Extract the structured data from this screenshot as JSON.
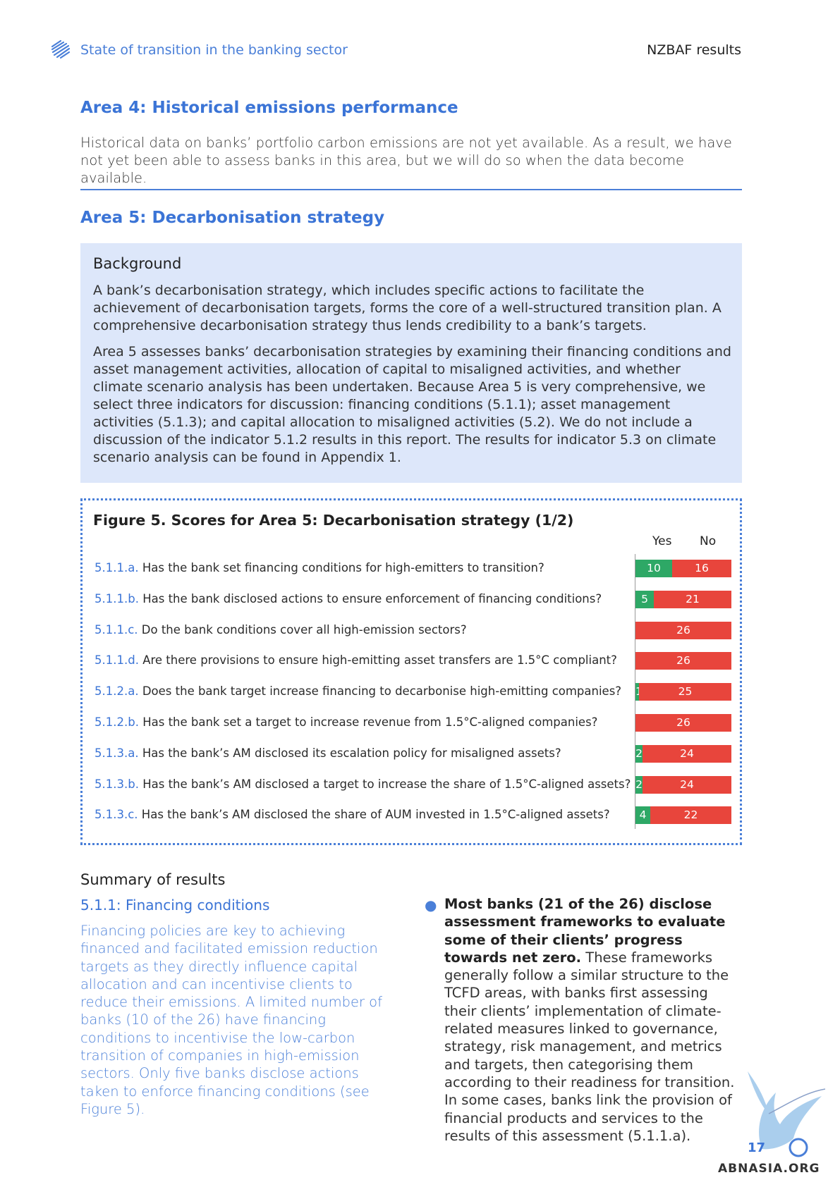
{
  "header": {
    "title": "State of transition in the banking sector",
    "right": "NZBAF results"
  },
  "area4": {
    "title": "Area 4: Historical emissions performance",
    "text": "Historical data on banks’ portfolio carbon emissions are not yet available. As a result, we have not yet been able to assess banks in this area, but we will do so when the data become available."
  },
  "area5": {
    "title": "Area 5: Decarbonisation strategy",
    "background_title": "Background",
    "p1": "A bank’s decarbonisation strategy, which includes specific actions to facilitate the achievement of decarbonisation targets, forms the core of a well-structured transition plan. A comprehensive decarbonisation strategy thus lends credibility to a bank’s targets.",
    "p2": "Area 5 assesses banks’ decarbonisation strategies by examining their financing conditions and asset management activities, allocation of capital to misaligned activities, and whether climate scenario analysis has been undertaken. Because Area 5 is very comprehensive, we select three indicators for discussion: financing conditions (5.1.1); asset management activities (5.1.3); and capital allocation to misaligned activities (5.2). We do not include a discussion of the indicator 5.1.2 results in this report. The results for indicator 5.3 on climate scenario analysis can be found in Appendix 1."
  },
  "chart_data": {
    "type": "bar",
    "title": "Figure 5. Scores for Area 5: Decarbonisation strategy (1/2)",
    "series_names": [
      "Yes",
      "No"
    ],
    "colors": {
      "yes": "#2ea866",
      "no": "#e8453c"
    },
    "total": 26,
    "rows": [
      {
        "code": "5.1.1.a.",
        "question": "Has the bank set financing conditions for high-emitters to transition?",
        "yes": 10,
        "no": 16
      },
      {
        "code": "5.1.1.b.",
        "question": "Has the bank disclosed actions to ensure enforcement of financing conditions?",
        "yes": 5,
        "no": 21
      },
      {
        "code": "5.1.1.c.",
        "question": "Do the bank conditions cover all high-emission sectors?",
        "yes": 0,
        "no": 26
      },
      {
        "code": "5.1.1.d.",
        "question": "Are there provisions to ensure high-emitting asset transfers are 1.5°C compliant?",
        "yes": 0,
        "no": 26
      },
      {
        "code": "5.1.2.a.",
        "question": "Does the bank target increase financing to decarbonise high-emitting companies?",
        "yes": 1,
        "no": 25
      },
      {
        "code": "5.1.2.b.",
        "question": "Has the bank set a target to increase revenue from 1.5°C-aligned companies?",
        "yes": 0,
        "no": 26
      },
      {
        "code": "5.1.3.a.",
        "question": "Has the bank’s AM disclosed its escalation policy for misaligned assets?",
        "yes": 2,
        "no": 24
      },
      {
        "code": "5.1.3.b.",
        "question": "Has the bank’s AM disclosed a target to increase the share of 1.5°C-aligned assets?",
        "yes": 2,
        "no": 24
      },
      {
        "code": "5.1.3.c.",
        "question": "Has the bank’s AM disclosed the share of AUM invested in 1.5°C-aligned assets?",
        "yes": 4,
        "no": 22
      }
    ]
  },
  "summary": {
    "title": "Summary of results",
    "subtitle": "5.1.1: Financing conditions",
    "left": "Financing policies are key to achieving financed and facilitated emission reduction targets as they directly influence capital allocation and can incentivise clients to reduce their emissions. A limited number of banks (10 of the 26) have financing conditions to incentivise the low-carbon transition of companies in high-emission sectors. Only five banks disclose actions taken to enforce financing conditions (see Figure 5).",
    "right_bold": "Most banks (21 of the 26) disclose assessment frameworks to evaluate some of their clients’ progress towards net zero.",
    "right_rest": " These frameworks generally follow a similar structure to the TCFD areas, with banks first assessing their clients’ implementation of climate-related measures linked to governance, strategy, risk management, and metrics and targets, then categorising them according to their readiness for transition. In some cases, banks link the provision of financial products and services to the results of this assessment (5.1.1.a)."
  },
  "page_number": "17",
  "watermark": "ABNASIA.ORG"
}
